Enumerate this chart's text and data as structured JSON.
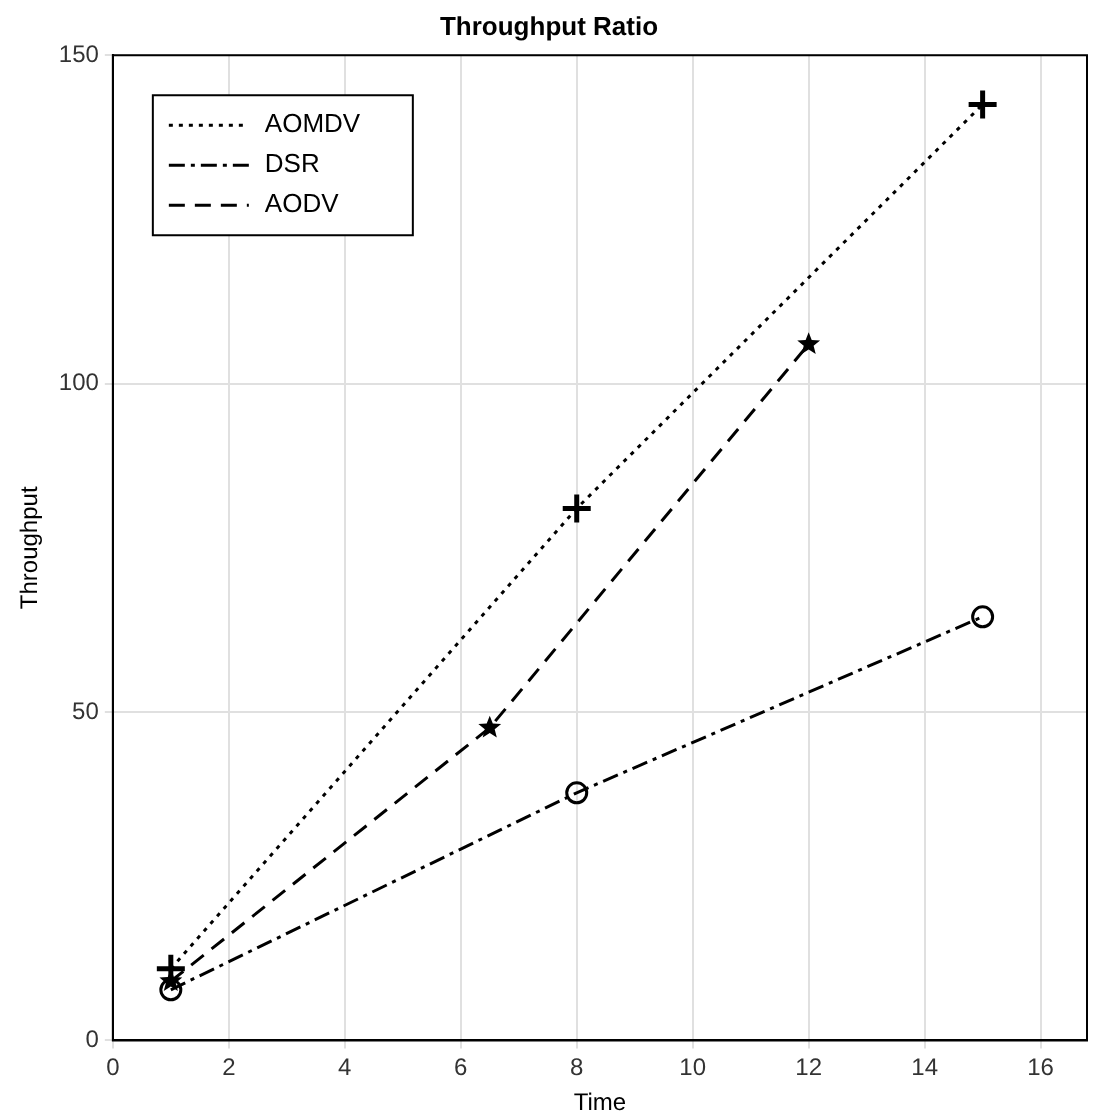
{
  "chart_data": {
    "type": "line",
    "title": "Throughput Ratio",
    "xlabel": "Time",
    "ylabel": "Throughput",
    "xlim": [
      0,
      16.8
    ],
    "xticks": [
      0,
      2,
      4,
      6,
      8,
      10,
      12,
      14,
      16
    ],
    "ylim": [
      0,
      150
    ],
    "yticks": [
      0,
      50,
      100,
      150
    ],
    "grid": true,
    "legend": "top left",
    "series": [
      {
        "name": "AOMDV",
        "color": "#000000",
        "line_style": "dotted",
        "marker": "cross",
        "x": [
          1,
          8,
          15
        ],
        "values": [
          10.9,
          81,
          142.5
        ]
      },
      {
        "name": "DSR",
        "color": "#000000",
        "line_style": "dashdot",
        "marker": "circle",
        "x": [
          1,
          8,
          15
        ],
        "values": [
          7.7,
          37.7,
          64.5
        ]
      },
      {
        "name": "AODV",
        "color": "#000000",
        "line_style": "dashed",
        "marker": "star",
        "x": [
          1,
          6.5,
          12
        ],
        "values": [
          9,
          47.6,
          106
        ]
      }
    ]
  }
}
